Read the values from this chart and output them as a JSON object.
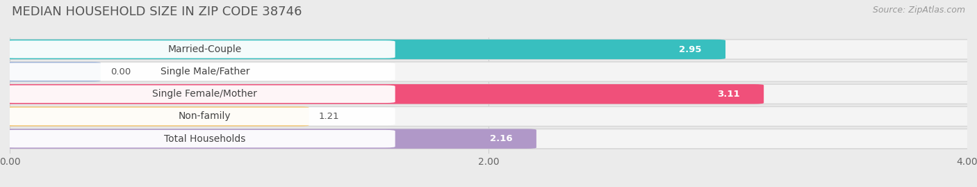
{
  "title": "MEDIAN HOUSEHOLD SIZE IN ZIP CODE 38746",
  "source": "Source: ZipAtlas.com",
  "categories": [
    "Married-Couple",
    "Single Male/Father",
    "Single Female/Mother",
    "Non-family",
    "Total Households"
  ],
  "values": [
    2.95,
    0.0,
    3.11,
    1.21,
    2.16
  ],
  "bar_colors": [
    "#38bfbf",
    "#a0b4d8",
    "#f0507a",
    "#f5c878",
    "#b098c8"
  ],
  "xlim": [
    0,
    4.0
  ],
  "xticks": [
    0.0,
    2.0,
    4.0
  ],
  "xtick_labels": [
    "0.00",
    "2.00",
    "4.00"
  ],
  "page_background": "#ebebeb",
  "bar_bg_color": "#f4f4f4",
  "label_bg_color": "#ffffff",
  "title_fontsize": 13,
  "label_fontsize": 10,
  "value_fontsize": 9.5,
  "source_fontsize": 9,
  "bar_height": 0.68,
  "bar_gap": 0.18
}
